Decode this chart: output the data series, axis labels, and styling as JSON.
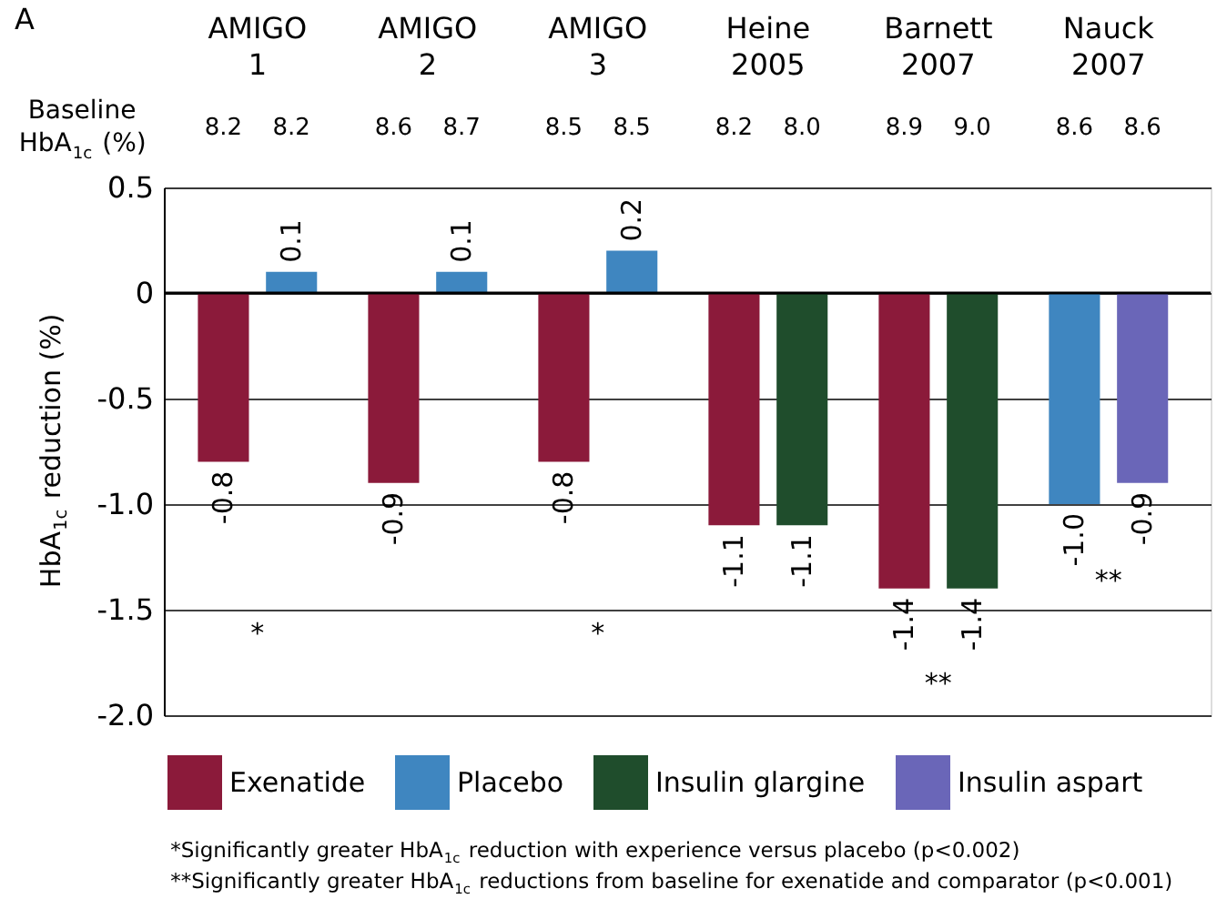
{
  "chart_data": {
    "type": "bar",
    "title": "A",
    "ylabel": "HbA$_{1c}$ reduction (%)",
    "categories": [
      "AMIGO 1",
      "AMIGO 2",
      "AMIGO 3",
      "Heine 2005",
      "Barnett 2007",
      "Nauck 2007"
    ],
    "series": [
      {
        "name": "Exenatide",
        "color": "#8b1a3a",
        "values": [
          -0.8,
          -0.9,
          -0.8,
          -1.1,
          -1.4,
          null
        ],
        "value_labels": [
          "-0.8",
          "-0.9",
          "-0.8",
          "-1.1",
          "-1.4",
          null
        ]
      },
      {
        "name": "Placebo",
        "color": "#3f86c0",
        "values": [
          0.1,
          0.1,
          0.2,
          null,
          null,
          -1.0
        ],
        "value_labels": [
          "0.1",
          "0.1",
          "0.2",
          null,
          null,
          "-1.0"
        ]
      },
      {
        "name": "Insulin glargine",
        "color": "#1f4d2c",
        "values": [
          null,
          null,
          null,
          -1.1,
          -1.4,
          null
        ],
        "value_labels": [
          null,
          null,
          null,
          "-1.1",
          "-1.4",
          null
        ]
      },
      {
        "name": "Insulin aspart",
        "color": "#6a66b8",
        "values": [
          null,
          null,
          null,
          null,
          null,
          -0.9
        ],
        "value_labels": [
          null,
          null,
          null,
          null,
          null,
          "-0.9"
        ]
      }
    ],
    "ylim": [
      -2.0,
      0.5
    ],
    "yticks": [
      {
        "value": -2,
        "label": "-2.0"
      },
      {
        "value": -1.5,
        "label": "-1.5"
      },
      {
        "value": -1,
        "label": "-1.0"
      },
      {
        "value": -0.5,
        "label": "-0.5"
      },
      0,
      0.5
    ],
    "grid": "y",
    "legend": "bottom",
    "annotations": [
      "Baseline HbA$_{1c}$ (%)",
      "8.2",
      "8.2",
      "8.6",
      "8.7",
      "8.5",
      "8.5",
      "8.2",
      "8.0",
      "8.9",
      "9.0",
      "8.6",
      "8.6",
      "*",
      "*",
      "**",
      "**",
      "*Significantly greater HbA$_{1c}$ reduction with experience versus placebo (p<0.002)",
      "**Significantly greater HbA$_{1c}$ reductions from baseline for exenatide and comparator (p<0.001)"
    ]
  }
}
